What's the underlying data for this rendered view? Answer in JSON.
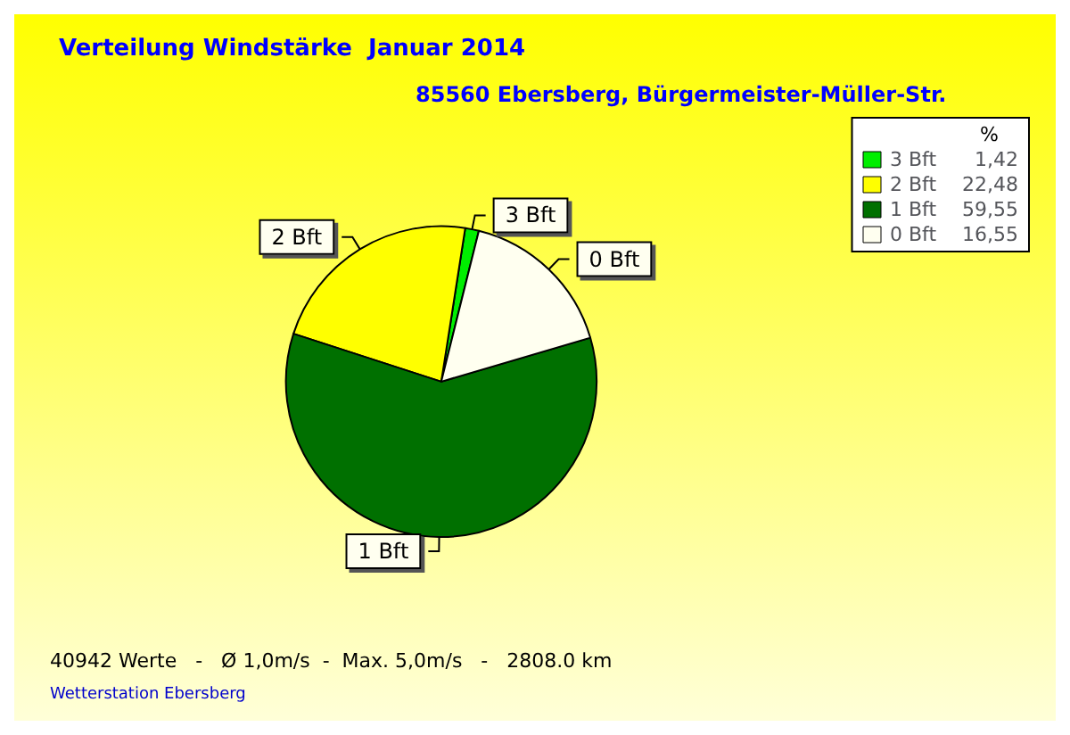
{
  "chart_data": {
    "type": "pie",
    "title": "Verteilung Windstärke  Januar 2014",
    "subtitle": "85560 Ebersberg, Bürgermeister-Müller-Str.",
    "categories": [
      "3 Bft",
      "2 Bft",
      "1 Bft",
      "0 Bft"
    ],
    "values": [
      1.42,
      22.48,
      59.55,
      16.55
    ],
    "colors": [
      "#00ee00",
      "#ffff00",
      "#007000",
      "#fffff0"
    ],
    "legend": "top right",
    "legend_title": "%",
    "value_labels": [
      "1,42",
      "22,48",
      "59,55",
      "16,55"
    ],
    "annotations": [
      "40942 Werte   -   Ø 1,0m/s  -  Max. 5,0m/s   -   2808.0 km",
      "Wetterstation Ebersberg"
    ]
  }
}
